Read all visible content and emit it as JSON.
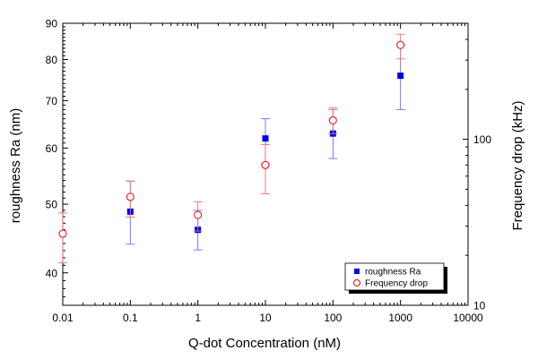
{
  "chart_data": {
    "type": "scatter",
    "xlabel": "Q-dot Concentration (nM)",
    "ylabel": "roughness Ra (nm)",
    "y2label": "Frequency drop (kHz)",
    "xscale": "log",
    "yscale": "log",
    "y2scale": "log",
    "xlim": [
      0.01,
      10000
    ],
    "ylim": [
      36,
      90
    ],
    "y2lim": [
      10,
      500
    ],
    "x_ticks": [
      0.01,
      0.1,
      1,
      10,
      100,
      1000,
      10000
    ],
    "x_tick_labels": [
      "0.01",
      "0.1",
      "1",
      "10",
      "100",
      "1000",
      "10000"
    ],
    "y_ticks": [
      40,
      50,
      60,
      70,
      80,
      90
    ],
    "y_tick_labels": [
      "40",
      "50",
      "60",
      "70",
      "80",
      "90"
    ],
    "y2_ticks": [
      10,
      100
    ],
    "y2_tick_labels": [
      "10",
      "100"
    ],
    "grid": false,
    "legend_position": "bottom-right",
    "series": [
      {
        "name": "roughness Ra",
        "axis": "left",
        "marker": "filled-square",
        "color": "#0000ee",
        "points": [
          {
            "x": 0.1,
            "y": 48.8,
            "err_low": 43.9,
            "err_high": 53.9
          },
          {
            "x": 1,
            "y": 46.0,
            "err_low": 43.1,
            "err_high": 49.0
          },
          {
            "x": 10,
            "y": 61.9,
            "err_low": 57.0,
            "err_high": 66.0
          },
          {
            "x": 100,
            "y": 62.9,
            "err_low": 58.0,
            "err_high": 68.0
          },
          {
            "x": 1000,
            "y": 75.9,
            "err_low": 68.0,
            "err_high": 84.0
          }
        ]
      },
      {
        "name": "Frequency drop",
        "axis": "right",
        "marker": "open-circle",
        "color": "#ee0000",
        "points": [
          {
            "x": 0.01,
            "y": 27,
            "err_low": 18,
            "err_high": 36
          },
          {
            "x": 0.1,
            "y": 45,
            "err_low": 34,
            "err_high": 56
          },
          {
            "x": 1,
            "y": 35,
            "err_low": 28,
            "err_high": 42
          },
          {
            "x": 10,
            "y": 70,
            "err_low": 47,
            "err_high": 93
          },
          {
            "x": 100,
            "y": 130,
            "err_low": 108,
            "err_high": 155
          },
          {
            "x": 1000,
            "y": 370,
            "err_low": 305,
            "err_high": 430
          }
        ]
      }
    ]
  }
}
